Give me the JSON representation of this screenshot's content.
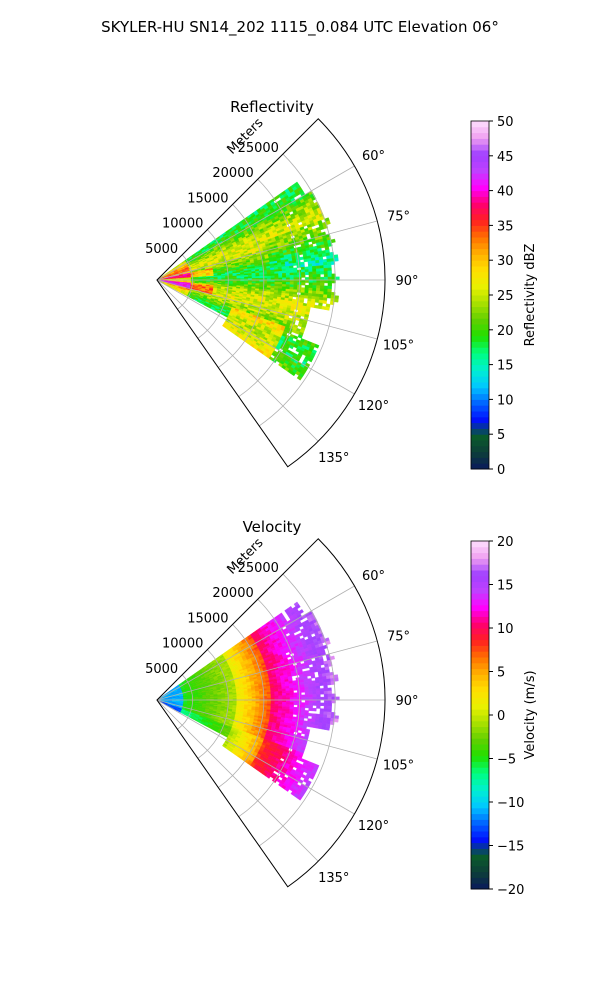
{
  "suptitle": "SKYLER-HU  SN14_202  1115_0.084 UTC Elevation 06°",
  "chart_data": [
    {
      "type": "heatmap",
      "projection": "polar-sector",
      "title": "Reflectivity",
      "radial_label": "Meters",
      "radial_ticks": [
        "5000",
        "10000",
        "15000",
        "20000",
        "25000"
      ],
      "radial_tick_values": [
        5000,
        10000,
        15000,
        20000,
        25000
      ],
      "rlim": [
        0,
        32000
      ],
      "angle_ticks": [
        "60°",
        "75°",
        "90°",
        "105°",
        "120°",
        "135°"
      ],
      "angle_tick_values": [
        60,
        75,
        90,
        105,
        120,
        135
      ],
      "theta_range_deg": [
        45,
        145
      ],
      "grid": true,
      "colorbar": {
        "label": "Reflectivity dBZ",
        "range": [
          0,
          50
        ],
        "ticks": [
          "0",
          "5",
          "10",
          "15",
          "20",
          "25",
          "30",
          "35",
          "40",
          "45",
          "50"
        ],
        "colors": [
          "#0a1a5c",
          "#0c3d3a",
          "#0a5c2a",
          "#0010ff",
          "#0066ff",
          "#00c8ff",
          "#00f0d0",
          "#00ff80",
          "#20e000",
          "#60d000",
          "#a8e000",
          "#e8f000",
          "#ffe000",
          "#ffb000",
          "#ff7000",
          "#ff2020",
          "#ff0070",
          "#ff00ff",
          "#c040ff",
          "#a040ff",
          "#f0a0f0",
          "#ffe0ff"
        ]
      },
      "field": "reflectivity"
    },
    {
      "type": "heatmap",
      "projection": "polar-sector",
      "title": "Velocity",
      "radial_label": "Meters",
      "radial_ticks": [
        "5000",
        "10000",
        "15000",
        "20000",
        "25000"
      ],
      "radial_tick_values": [
        5000,
        10000,
        15000,
        20000,
        25000
      ],
      "rlim": [
        0,
        32000
      ],
      "angle_ticks": [
        "60°",
        "75°",
        "90°",
        "105°",
        "120°",
        "135°"
      ],
      "angle_tick_values": [
        60,
        75,
        90,
        105,
        120,
        135
      ],
      "theta_range_deg": [
        45,
        145
      ],
      "grid": true,
      "colorbar": {
        "label": "Velocity (m/s)",
        "range": [
          -20,
          20
        ],
        "ticks": [
          "−20",
          "−15",
          "−10",
          "−5",
          "0",
          "5",
          "10",
          "15",
          "20"
        ],
        "colors": [
          "#0a1a5c",
          "#0c3d3a",
          "#0a5c2a",
          "#0010ff",
          "#0066ff",
          "#00c8ff",
          "#00f0d0",
          "#00ff80",
          "#20e000",
          "#60d000",
          "#a8e000",
          "#e8f000",
          "#ffe000",
          "#ffb000",
          "#ff7000",
          "#ff2020",
          "#ff0070",
          "#ff00ff",
          "#c040ff",
          "#a040ff",
          "#f0a0f0",
          "#ffe0ff"
        ]
      },
      "field": "velocity"
    }
  ]
}
